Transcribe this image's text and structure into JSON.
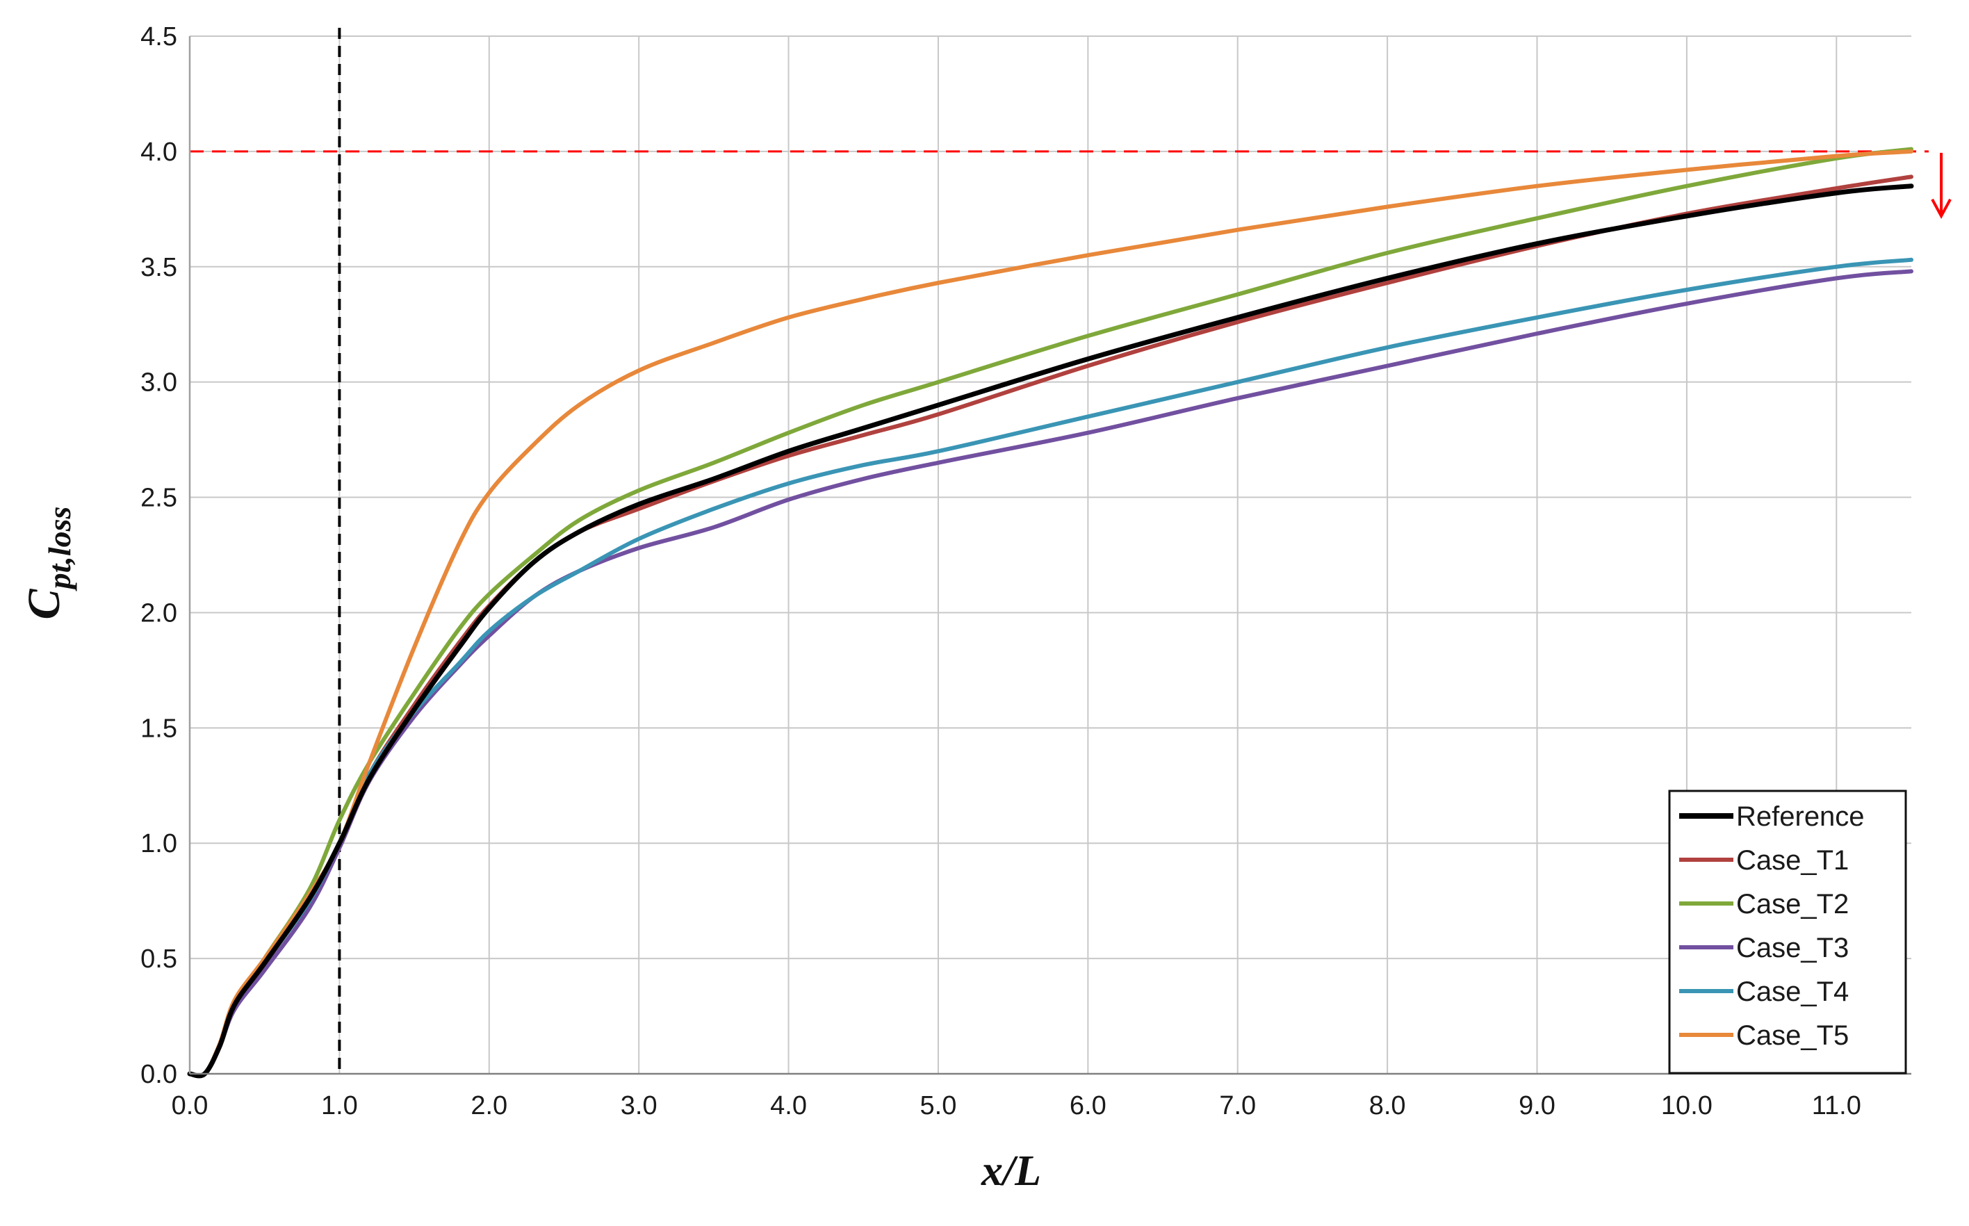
{
  "chart_data": {
    "type": "line",
    "xlabel": "x/L",
    "ylabel_main": "C",
    "ylabel_sub": "pt,loss",
    "xlim": [
      0,
      11.5
    ],
    "ylim": [
      0,
      4.5
    ],
    "xticks": [
      "0.0",
      "1.0",
      "2.0",
      "3.0",
      "4.0",
      "5.0",
      "6.0",
      "7.0",
      "8.0",
      "9.0",
      "10.0",
      "11.0"
    ],
    "yticks": [
      "0.0",
      "0.5",
      "1.0",
      "1.5",
      "2.0",
      "2.5",
      "3.0",
      "3.5",
      "4.0",
      "4.5"
    ],
    "grid": true,
    "legend_position": "bottom-right",
    "reference_lines": [
      {
        "orientation": "vertical",
        "value": 1.0,
        "color": "#000000",
        "style": "dashed"
      },
      {
        "orientation": "horizontal",
        "value": 4.0,
        "color": "#ff0000",
        "style": "dashed"
      }
    ],
    "annotations": [
      {
        "type": "arrow-down",
        "x": 11.7,
        "y_from": 4.0,
        "y_to": 3.72,
        "color": "#ff0000"
      }
    ],
    "series": [
      {
        "name": "Reference",
        "color": "#000000",
        "points": [
          [
            0,
            0
          ],
          [
            0.1,
            0
          ],
          [
            0.2,
            0.12
          ],
          [
            0.3,
            0.3
          ],
          [
            0.5,
            0.48
          ],
          [
            0.8,
            0.76
          ],
          [
            1.0,
            1.0
          ],
          [
            1.2,
            1.28
          ],
          [
            1.5,
            1.58
          ],
          [
            1.8,
            1.85
          ],
          [
            2.0,
            2.02
          ],
          [
            2.3,
            2.22
          ],
          [
            2.6,
            2.35
          ],
          [
            3.0,
            2.47
          ],
          [
            3.5,
            2.58
          ],
          [
            4.0,
            2.7
          ],
          [
            4.5,
            2.8
          ],
          [
            5.0,
            2.9
          ],
          [
            6.0,
            3.1
          ],
          [
            7.0,
            3.28
          ],
          [
            8.0,
            3.45
          ],
          [
            9.0,
            3.6
          ],
          [
            10.0,
            3.72
          ],
          [
            11.0,
            3.82
          ],
          [
            11.5,
            3.85
          ]
        ]
      },
      {
        "name": "Case_T1",
        "color": "#b0413e",
        "points": [
          [
            0,
            0
          ],
          [
            0.1,
            0
          ],
          [
            0.2,
            0.12
          ],
          [
            0.3,
            0.3
          ],
          [
            0.5,
            0.48
          ],
          [
            0.8,
            0.77
          ],
          [
            1.0,
            1.0
          ],
          [
            1.2,
            1.3
          ],
          [
            1.5,
            1.6
          ],
          [
            1.8,
            1.87
          ],
          [
            2.0,
            2.03
          ],
          [
            2.3,
            2.22
          ],
          [
            2.6,
            2.35
          ],
          [
            3.0,
            2.45
          ],
          [
            3.5,
            2.57
          ],
          [
            4.0,
            2.68
          ],
          [
            4.5,
            2.77
          ],
          [
            5.0,
            2.86
          ],
          [
            6.0,
            3.07
          ],
          [
            7.0,
            3.26
          ],
          [
            8.0,
            3.43
          ],
          [
            9.0,
            3.59
          ],
          [
            10.0,
            3.73
          ],
          [
            11.0,
            3.84
          ],
          [
            11.5,
            3.89
          ]
        ]
      },
      {
        "name": "Case_T2",
        "color": "#7fa83a",
        "points": [
          [
            0,
            0
          ],
          [
            0.1,
            0
          ],
          [
            0.2,
            0.12
          ],
          [
            0.3,
            0.3
          ],
          [
            0.5,
            0.5
          ],
          [
            0.8,
            0.8
          ],
          [
            1.0,
            1.1
          ],
          [
            1.2,
            1.35
          ],
          [
            1.5,
            1.65
          ],
          [
            1.8,
            1.93
          ],
          [
            2.0,
            2.08
          ],
          [
            2.3,
            2.25
          ],
          [
            2.6,
            2.4
          ],
          [
            3.0,
            2.53
          ],
          [
            3.5,
            2.65
          ],
          [
            4.0,
            2.78
          ],
          [
            4.5,
            2.9
          ],
          [
            5.0,
            3.0
          ],
          [
            6.0,
            3.2
          ],
          [
            7.0,
            3.38
          ],
          [
            8.0,
            3.56
          ],
          [
            9.0,
            3.71
          ],
          [
            10.0,
            3.85
          ],
          [
            11.0,
            3.97
          ],
          [
            11.5,
            4.01
          ]
        ]
      },
      {
        "name": "Case_T3",
        "color": "#7250a0",
        "points": [
          [
            0,
            0
          ],
          [
            0.1,
            0
          ],
          [
            0.2,
            0.12
          ],
          [
            0.3,
            0.28
          ],
          [
            0.5,
            0.45
          ],
          [
            0.8,
            0.72
          ],
          [
            1.0,
            0.98
          ],
          [
            1.2,
            1.27
          ],
          [
            1.5,
            1.55
          ],
          [
            1.8,
            1.77
          ],
          [
            2.0,
            1.9
          ],
          [
            2.3,
            2.07
          ],
          [
            2.6,
            2.18
          ],
          [
            3.0,
            2.28
          ],
          [
            3.5,
            2.37
          ],
          [
            4.0,
            2.49
          ],
          [
            4.5,
            2.58
          ],
          [
            5.0,
            2.65
          ],
          [
            6.0,
            2.78
          ],
          [
            7.0,
            2.93
          ],
          [
            8.0,
            3.07
          ],
          [
            9.0,
            3.21
          ],
          [
            10.0,
            3.34
          ],
          [
            11.0,
            3.45
          ],
          [
            11.5,
            3.48
          ]
        ]
      },
      {
        "name": "Case_T4",
        "color": "#3a95b5",
        "points": [
          [
            0,
            0
          ],
          [
            0.1,
            0
          ],
          [
            0.2,
            0.12
          ],
          [
            0.3,
            0.3
          ],
          [
            0.5,
            0.48
          ],
          [
            0.8,
            0.75
          ],
          [
            1.0,
            1.0
          ],
          [
            1.2,
            1.3
          ],
          [
            1.5,
            1.57
          ],
          [
            1.8,
            1.78
          ],
          [
            2.0,
            1.92
          ],
          [
            2.3,
            2.07
          ],
          [
            2.6,
            2.18
          ],
          [
            3.0,
            2.32
          ],
          [
            3.5,
            2.45
          ],
          [
            4.0,
            2.56
          ],
          [
            4.5,
            2.64
          ],
          [
            5.0,
            2.7
          ],
          [
            6.0,
            2.85
          ],
          [
            7.0,
            3.0
          ],
          [
            8.0,
            3.15
          ],
          [
            9.0,
            3.28
          ],
          [
            10.0,
            3.4
          ],
          [
            11.0,
            3.5
          ],
          [
            11.5,
            3.53
          ]
        ]
      },
      {
        "name": "Case_T5",
        "color": "#e8883a",
        "points": [
          [
            0,
            0
          ],
          [
            0.1,
            0
          ],
          [
            0.2,
            0.13
          ],
          [
            0.3,
            0.32
          ],
          [
            0.5,
            0.5
          ],
          [
            0.8,
            0.78
          ],
          [
            1.0,
            1.0
          ],
          [
            1.2,
            1.35
          ],
          [
            1.5,
            1.85
          ],
          [
            1.8,
            2.3
          ],
          [
            2.0,
            2.52
          ],
          [
            2.3,
            2.73
          ],
          [
            2.6,
            2.9
          ],
          [
            3.0,
            3.05
          ],
          [
            3.5,
            3.17
          ],
          [
            4.0,
            3.28
          ],
          [
            4.5,
            3.36
          ],
          [
            5.0,
            3.43
          ],
          [
            6.0,
            3.55
          ],
          [
            7.0,
            3.66
          ],
          [
            8.0,
            3.76
          ],
          [
            9.0,
            3.85
          ],
          [
            10.0,
            3.92
          ],
          [
            11.0,
            3.98
          ],
          [
            11.5,
            4.0
          ]
        ]
      }
    ]
  }
}
